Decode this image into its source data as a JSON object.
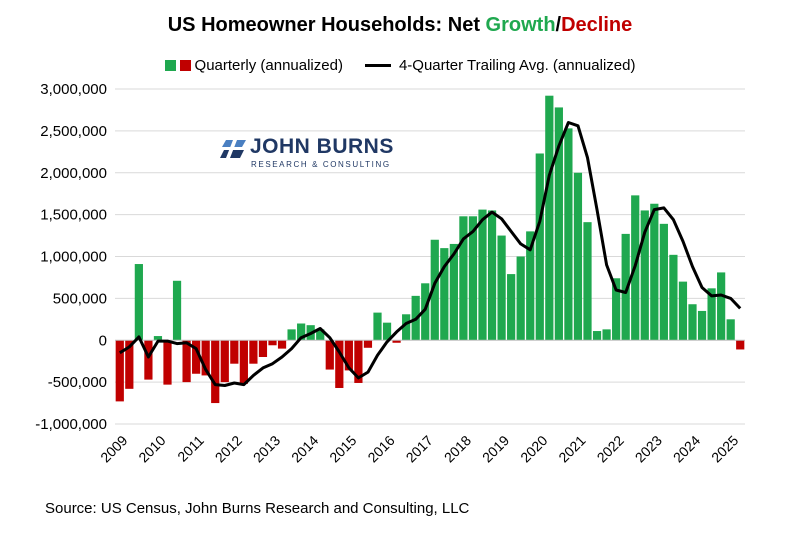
{
  "title": {
    "prefix": "US Homeowner Households: Net ",
    "growth": "Growth",
    "slash": "/",
    "decline": "Decline"
  },
  "legend": {
    "bars_label": "Quarterly (annualized)",
    "line_label": "4-Quarter Trailing Avg. (annualized)"
  },
  "logo": {
    "name": "JOHN BURNS",
    "subtitle": "RESEARCH & CONSULTING"
  },
  "source": "Source: US Census, John Burns Research and Consulting, LLC",
  "colors": {
    "growth": "#1fa84f",
    "decline": "#c00000",
    "line": "#000000",
    "grid": "#d9d9d9",
    "logo": "#203864"
  },
  "chart_data": {
    "type": "bar",
    "title": "US Homeowner Households: Net Growth/Decline",
    "xlabel": "",
    "ylabel": "",
    "ylim": [
      -1000000,
      3000000
    ],
    "y_ticks": [
      3000000,
      2500000,
      2000000,
      1500000,
      1000000,
      500000,
      0,
      -500000,
      -1000000
    ],
    "y_tick_labels": [
      "3,000,000",
      "2,500,000",
      "2,000,000",
      "1,500,000",
      "1,000,000",
      "500,000",
      "0",
      "-500,000",
      "-1,000,000"
    ],
    "x_tick_labels": [
      "2009",
      "2010",
      "2011",
      "2012",
      "2013",
      "2014",
      "2015",
      "2016",
      "2017",
      "2018",
      "2019",
      "2020",
      "2021",
      "2022",
      "2023",
      "2024",
      "2025"
    ],
    "grid": true,
    "legend_position": "top",
    "series": [
      {
        "name": "Quarterly (annualized)",
        "type": "bar",
        "values": [
          -730000,
          -580000,
          910000,
          -470000,
          50000,
          -530000,
          710000,
          -500000,
          -400000,
          -420000,
          -750000,
          -500000,
          -280000,
          -520000,
          -280000,
          -200000,
          -60000,
          -100000,
          130000,
          200000,
          180000,
          130000,
          -350000,
          -570000,
          -360000,
          -510000,
          -90000,
          330000,
          210000,
          -30000,
          310000,
          530000,
          680000,
          1200000,
          1100000,
          1150000,
          1480000,
          1480000,
          1560000,
          1550000,
          1250000,
          790000,
          1000000,
          1300000,
          2230000,
          2920000,
          2780000,
          2530000,
          2000000,
          1410000,
          110000,
          130000,
          740000,
          1270000,
          1730000,
          1550000,
          1630000,
          1390000,
          1020000,
          700000,
          430000,
          350000,
          620000,
          810000,
          250000,
          -110000
        ]
      },
      {
        "name": "4-Quarter Trailing Avg. (annualized)",
        "type": "line",
        "values": [
          -150000,
          -80000,
          40000,
          -200000,
          -10000,
          -10000,
          -40000,
          -30000,
          -100000,
          -350000,
          -530000,
          -540000,
          -510000,
          -530000,
          -420000,
          -330000,
          -280000,
          -200000,
          -100000,
          30000,
          80000,
          140000,
          30000,
          -140000,
          -330000,
          -450000,
          -380000,
          -180000,
          -20000,
          100000,
          200000,
          250000,
          370000,
          680000,
          880000,
          1030000,
          1210000,
          1300000,
          1440000,
          1530000,
          1450000,
          1300000,
          1150000,
          1080000,
          1420000,
          1970000,
          2320000,
          2600000,
          2560000,
          2180000,
          1560000,
          900000,
          600000,
          570000,
          890000,
          1290000,
          1560000,
          1580000,
          1440000,
          1180000,
          880000,
          630000,
          530000,
          540000,
          500000,
          380000
        ]
      }
    ]
  }
}
